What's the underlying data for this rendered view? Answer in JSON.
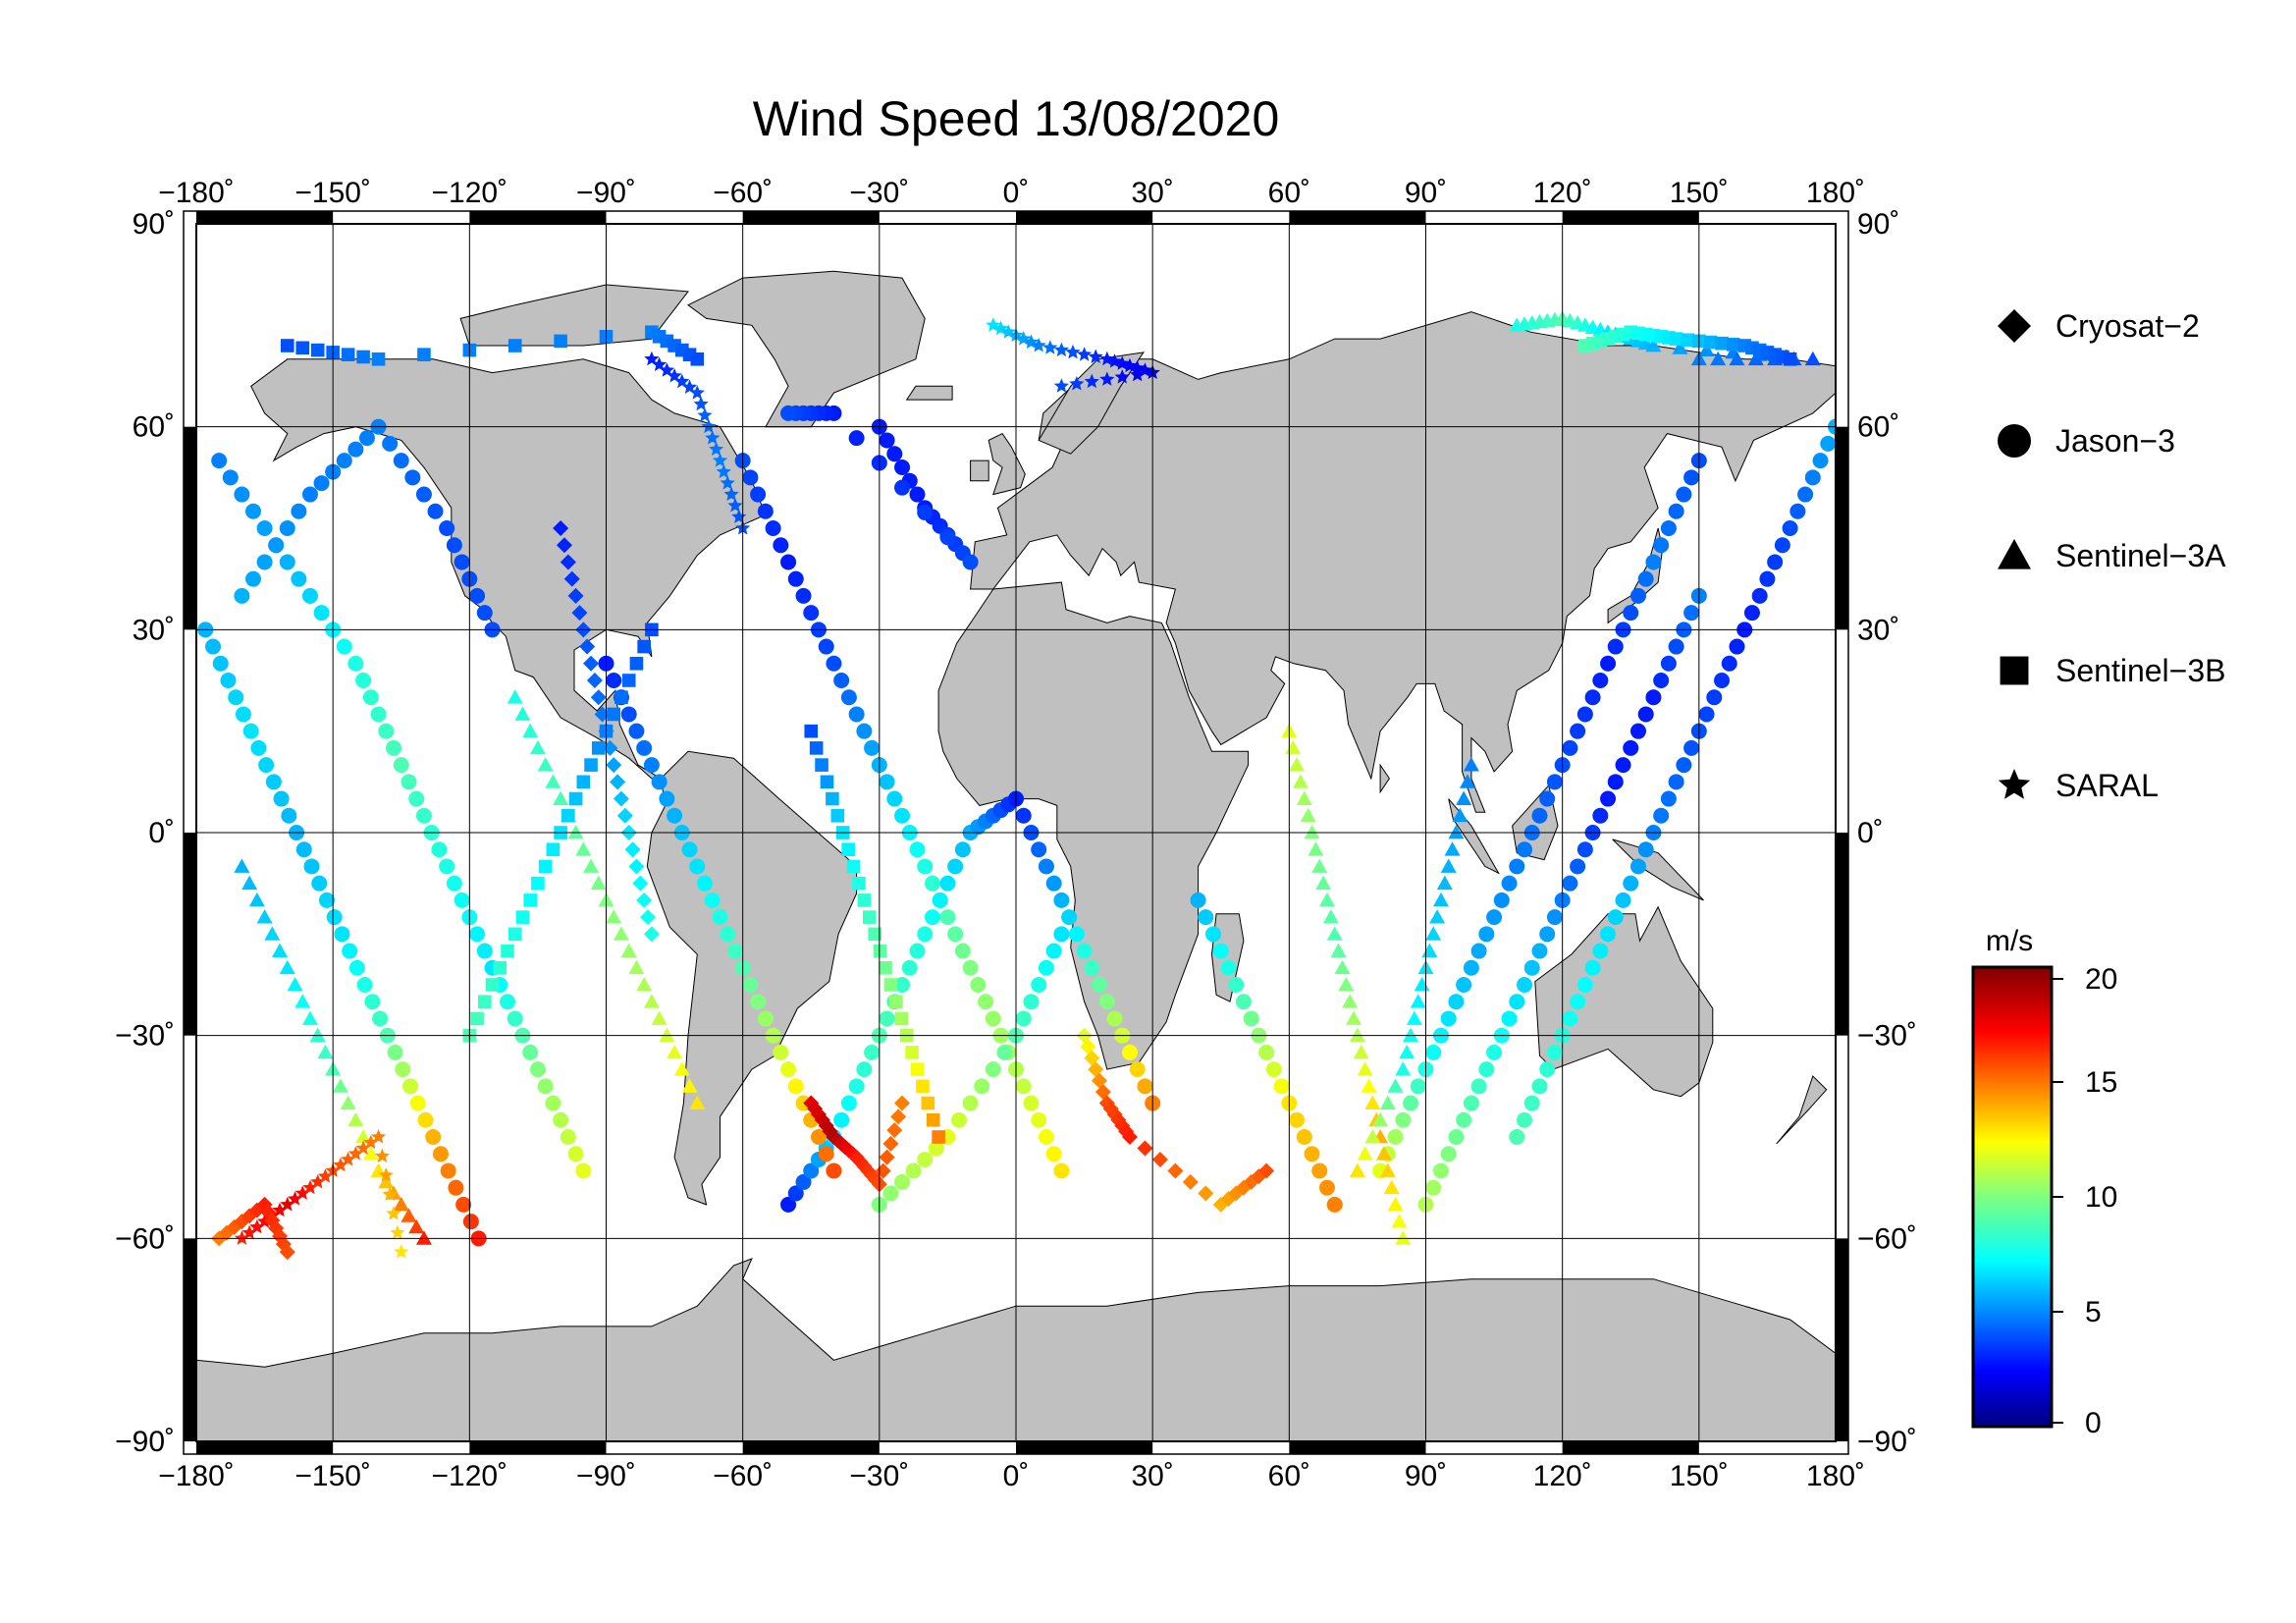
{
  "title": "Wind Speed 13/08/2020",
  "map": {
    "projection": "equirectangular",
    "lon_range": [
      -180,
      180
    ],
    "lat_range": [
      -90,
      90
    ],
    "lon_ticks": [
      -180,
      -150,
      -120,
      -90,
      -60,
      -30,
      0,
      30,
      60,
      90,
      120,
      150,
      180
    ],
    "lat_ticks": [
      -90,
      -60,
      -30,
      0,
      30,
      60,
      90
    ],
    "lon_tick_labels": [
      "−180˚",
      "−150˚",
      "−120˚",
      "−90˚",
      "−60˚",
      "−30˚",
      "0˚",
      "30˚",
      "60˚",
      "90˚",
      "120˚",
      "150˚",
      "180˚"
    ],
    "lat_tick_labels_left": [
      "−90˚",
      "−60˚",
      "−30˚",
      "0˚",
      "30˚",
      "60˚",
      "90˚"
    ],
    "lat_tick_labels_right": [
      "−90˚",
      "−60˚",
      "−30˚",
      "0˚",
      "30˚",
      "60˚",
      "90˚"
    ],
    "land_color": "#c0c0c0",
    "ocean_color": "#ffffff",
    "grid": true
  },
  "legend": {
    "placement": "right",
    "entries": [
      {
        "label": "Cryosat−2",
        "marker": "diamond"
      },
      {
        "label": "Jason−3",
        "marker": "circle"
      },
      {
        "label": "Sentinel−3A",
        "marker": "triangle"
      },
      {
        "label": "Sentinel−3B",
        "marker": "square"
      },
      {
        "label": "SARAL",
        "marker": "star"
      }
    ]
  },
  "colorbar": {
    "unit": "m/s",
    "min": 0,
    "max": 20,
    "tick_values": [
      0,
      5,
      10,
      15,
      20
    ],
    "tick_labels": [
      "0",
      "5",
      "10",
      "15",
      "20"
    ],
    "colormap": "jet"
  },
  "chart_data": {
    "type": "scatter",
    "title": "Wind Speed 13/08/2020",
    "note_unit": "m/s",
    "tracks": [
      {
        "satellite": "Jason−3",
        "points": [
          [
            -175,
            55,
            5
          ],
          [
            -160,
            40,
            6
          ],
          [
            -145,
            25,
            8
          ],
          [
            -135,
            10,
            9
          ],
          [
            -125,
            -5,
            8
          ],
          [
            -115,
            -20,
            7
          ],
          [
            -105,
            -35,
            10
          ],
          [
            -95,
            -50,
            12
          ]
        ]
      },
      {
        "satellite": "Jason−3",
        "points": [
          [
            -178,
            30,
            6
          ],
          [
            -168,
            15,
            7
          ],
          [
            -158,
            0,
            6
          ],
          [
            -148,
            -15,
            7
          ],
          [
            -138,
            -30,
            9
          ],
          [
            -128,
            -45,
            14
          ],
          [
            -118,
            -60,
            17
          ]
        ]
      },
      {
        "satellite": "Jason−3",
        "points": [
          [
            -60,
            55,
            4
          ],
          [
            -50,
            40,
            3
          ],
          [
            -40,
            25,
            4
          ],
          [
            -30,
            10,
            6
          ],
          [
            -20,
            -5,
            8
          ],
          [
            -10,
            -20,
            10
          ],
          [
            0,
            -35,
            11
          ],
          [
            10,
            -50,
            13
          ]
        ]
      },
      {
        "satellite": "Jason−3",
        "points": [
          [
            -50,
            -55,
            3
          ],
          [
            -40,
            -45,
            7
          ],
          [
            -30,
            -30,
            9
          ],
          [
            -20,
            -15,
            8
          ],
          [
            -10,
            0,
            6
          ],
          [
            0,
            5,
            3
          ],
          [
            10,
            -10,
            6
          ],
          [
            20,
            -25,
            10
          ],
          [
            30,
            -40,
            15
          ]
        ]
      },
      {
        "satellite": "Jason−3",
        "points": [
          [
            150,
            55,
            4
          ],
          [
            140,
            40,
            5
          ],
          [
            130,
            25,
            3
          ],
          [
            120,
            10,
            4
          ],
          [
            110,
            -5,
            5
          ],
          [
            100,
            -20,
            6
          ],
          [
            90,
            -35,
            8
          ],
          [
            80,
            -50,
            12
          ]
        ]
      },
      {
        "satellite": "Jason−3",
        "points": [
          [
            180,
            60,
            6
          ],
          [
            170,
            45,
            4
          ],
          [
            160,
            30,
            3
          ],
          [
            150,
            15,
            4
          ],
          [
            140,
            0,
            5
          ],
          [
            130,
            -15,
            7
          ],
          [
            120,
            -30,
            8
          ],
          [
            110,
            -45,
            9
          ]
        ]
      },
      {
        "satellite": "Jason−3",
        "points": [
          [
            90,
            -55,
            11
          ],
          [
            100,
            -40,
            9
          ],
          [
            110,
            -25,
            7
          ],
          [
            120,
            -10,
            5
          ],
          [
            130,
            5,
            3
          ],
          [
            140,
            20,
            3
          ],
          [
            150,
            35,
            5
          ]
        ]
      },
      {
        "satellite": "Jason−3",
        "points": [
          [
            -30,
            60,
            3
          ],
          [
            -20,
            48,
            3
          ],
          [
            -10,
            40,
            4
          ],
          [
            -40,
            62,
            3
          ],
          [
            -50,
            62,
            4
          ]
        ]
      },
      {
        "satellite": "Jason−3",
        "points": [
          [
            -170,
            35,
            6
          ],
          [
            -155,
            50,
            5
          ],
          [
            -140,
            60,
            5
          ],
          [
            -125,
            45,
            4
          ],
          [
            -115,
            30,
            4
          ]
        ]
      },
      {
        "satellite": "Jason−3",
        "points": [
          [
            -90,
            25,
            3
          ],
          [
            -80,
            10,
            5
          ],
          [
            -70,
            -5,
            7
          ],
          [
            -60,
            -20,
            9
          ],
          [
            -50,
            -35,
            12
          ],
          [
            -40,
            -50,
            16
          ]
        ]
      },
      {
        "satellite": "Jason−3",
        "points": [
          [
            40,
            -10,
            6
          ],
          [
            50,
            -25,
            9
          ],
          [
            60,
            -40,
            13
          ],
          [
            70,
            -55,
            15
          ]
        ]
      },
      {
        "satellite": "Jason−3",
        "points": [
          [
            -30,
            -55,
            10
          ],
          [
            -15,
            -45,
            12
          ],
          [
            0,
            -30,
            9
          ],
          [
            10,
            -15,
            7
          ]
        ]
      },
      {
        "satellite": "Sentinel−3A",
        "points": [
          [
            -170,
            -5,
            6
          ],
          [
            -160,
            -20,
            7
          ],
          [
            -150,
            -35,
            9
          ],
          [
            -140,
            -50,
            13
          ],
          [
            -130,
            -60,
            17
          ]
        ]
      },
      {
        "satellite": "Sentinel−3A",
        "points": [
          [
            -110,
            20,
            8
          ],
          [
            -100,
            5,
            9
          ],
          [
            -90,
            -10,
            10
          ],
          [
            -80,
            -25,
            11
          ],
          [
            -70,
            -40,
            13
          ]
        ]
      },
      {
        "satellite": "Sentinel−3A",
        "points": [
          [
            60,
            15,
            12
          ],
          [
            65,
            0,
            10
          ],
          [
            70,
            -15,
            9
          ],
          [
            75,
            -30,
            11
          ],
          [
            80,
            -45,
            14
          ],
          [
            85,
            -60,
            12
          ]
        ]
      },
      {
        "satellite": "Sentinel−3A",
        "points": [
          [
            100,
            10,
            5
          ],
          [
            95,
            -5,
            6
          ],
          [
            90,
            -20,
            7
          ],
          [
            85,
            -35,
            8
          ],
          [
            75,
            -50,
            13
          ]
        ]
      },
      {
        "satellite": "Sentinel−3A",
        "points": [
          [
            110,
            75,
            8
          ],
          [
            120,
            76,
            9
          ],
          [
            130,
            74,
            7
          ],
          [
            140,
            72,
            6
          ],
          [
            175,
            70,
            4
          ],
          [
            150,
            70,
            5
          ]
        ]
      },
      {
        "satellite": "Sentinel−3B",
        "points": [
          [
            -120,
            -30,
            9
          ],
          [
            -110,
            -15,
            8
          ],
          [
            -100,
            0,
            7
          ],
          [
            -90,
            15,
            5
          ],
          [
            -80,
            30,
            4
          ]
        ]
      },
      {
        "satellite": "Sentinel−3B",
        "points": [
          [
            -45,
            15,
            4
          ],
          [
            -38,
            0,
            7
          ],
          [
            -31,
            -15,
            9
          ],
          [
            -24,
            -30,
            11
          ],
          [
            -17,
            -45,
            15
          ]
        ]
      },
      {
        "satellite": "Sentinel−3B",
        "points": [
          [
            125,
            72,
            9
          ],
          [
            135,
            74,
            8
          ],
          [
            145,
            73,
            7
          ],
          [
            160,
            72,
            5
          ],
          [
            170,
            70,
            4
          ]
        ]
      },
      {
        "satellite": "Sentinel−3B",
        "points": [
          [
            -160,
            72,
            4
          ],
          [
            -140,
            70,
            5
          ],
          [
            -80,
            74,
            5
          ],
          [
            -70,
            70,
            4
          ]
        ]
      },
      {
        "satellite": "SARAL",
        "points": [
          [
            -5,
            75,
            7
          ],
          [
            5,
            72,
            5
          ],
          [
            20,
            70,
            3
          ],
          [
            30,
            68,
            2
          ],
          [
            10,
            66,
            4
          ]
        ]
      },
      {
        "satellite": "SARAL",
        "points": [
          [
            -170,
            -60,
            17
          ],
          [
            -160,
            -55,
            18
          ],
          [
            -150,
            -50,
            16
          ],
          [
            -140,
            -45,
            15
          ],
          [
            -135,
            -62,
            13
          ]
        ]
      },
      {
        "satellite": "SARAL",
        "points": [
          [
            -80,
            70,
            3
          ],
          [
            -70,
            65,
            4
          ],
          [
            -65,
            55,
            5
          ],
          [
            -60,
            45,
            4
          ]
        ]
      },
      {
        "satellite": "Cryosat−2",
        "points": [
          [
            -100,
            45,
            3
          ],
          [
            -95,
            30,
            4
          ],
          [
            -90,
            15,
            5
          ],
          [
            -85,
            0,
            7
          ],
          [
            -80,
            -15,
            8
          ]
        ]
      },
      {
        "satellite": "Cryosat−2",
        "points": [
          [
            -45,
            -40,
            18
          ],
          [
            -40,
            -45,
            19
          ],
          [
            -35,
            -48,
            17
          ],
          [
            -30,
            -52,
            16
          ],
          [
            -25,
            -40,
            15
          ]
        ]
      },
      {
        "satellite": "Cryosat−2",
        "points": [
          [
            15,
            -30,
            12
          ],
          [
            20,
            -40,
            16
          ],
          [
            25,
            -45,
            17
          ],
          [
            45,
            -55,
            14
          ],
          [
            55,
            -50,
            16
          ]
        ]
      },
      {
        "satellite": "Cryosat−2",
        "points": [
          [
            -175,
            -60,
            15
          ],
          [
            -165,
            -55,
            17
          ],
          [
            -160,
            -62,
            16
          ]
        ]
      }
    ]
  }
}
